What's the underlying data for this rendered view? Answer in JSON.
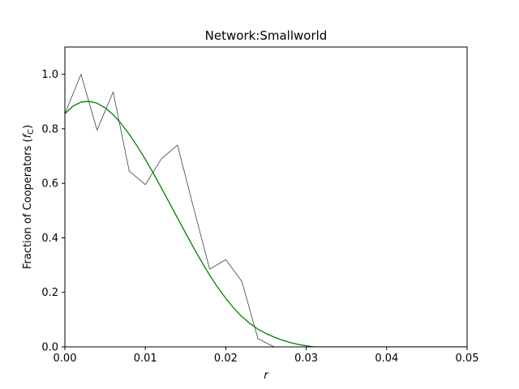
{
  "chart_data": {
    "type": "line",
    "title": "Network:Smallworld",
    "xlabel": "r",
    "ylabel_main": "Fraction of Cooperators (",
    "ylabel_sym": "f",
    "ylabel_sub": "C",
    "ylabel_end": ")",
    "xlim": [
      0.0,
      0.05
    ],
    "ylim": [
      0.0,
      1.1
    ],
    "x_ticks": [
      0.0,
      0.01,
      0.02,
      0.03,
      0.04,
      0.05
    ],
    "x_tick_labels": [
      "0.00",
      "0.01",
      "0.02",
      "0.03",
      "0.04",
      "0.05"
    ],
    "y_ticks": [
      0.0,
      0.2,
      0.4,
      0.6,
      0.8,
      1.0
    ],
    "y_tick_labels": [
      "0.0",
      "0.2",
      "0.4",
      "0.6",
      "0.8",
      "1.0"
    ],
    "grid": false,
    "series": [
      {
        "color": "#404040",
        "x": [
          0.0,
          0.002,
          0.004,
          0.006,
          0.008,
          0.01,
          0.012,
          0.014,
          0.016,
          0.018,
          0.02,
          0.022,
          0.024,
          0.026,
          0.028,
          0.03,
          0.032,
          0.034,
          0.036,
          0.038,
          0.04,
          0.042,
          0.044,
          0.046,
          0.048,
          0.05
        ],
        "y": [
          0.855,
          1.0,
          0.795,
          0.935,
          0.645,
          0.595,
          0.69,
          0.74,
          0.51,
          0.285,
          0.32,
          0.24,
          0.03,
          0.0,
          0.0,
          0.0,
          0.0,
          0.0,
          0.0,
          0.0,
          0.0,
          0.0,
          0.0,
          0.0,
          0.0,
          0.0
        ]
      },
      {
        "color": "#008000",
        "x": [
          0.0,
          0.001,
          0.002,
          0.003,
          0.004,
          0.005,
          0.006,
          0.007,
          0.008,
          0.009,
          0.01,
          0.011,
          0.012,
          0.013,
          0.014,
          0.015,
          0.016,
          0.017,
          0.018,
          0.019,
          0.02,
          0.021,
          0.022,
          0.023,
          0.024,
          0.025,
          0.026,
          0.027,
          0.028,
          0.029,
          0.03,
          0.031,
          0.032,
          0.034,
          0.036,
          0.038,
          0.04,
          0.042,
          0.044,
          0.046,
          0.048,
          0.05
        ],
        "y": [
          0.855,
          0.883,
          0.898,
          0.901,
          0.894,
          0.877,
          0.852,
          0.819,
          0.78,
          0.736,
          0.688,
          0.637,
          0.583,
          0.528,
          0.473,
          0.418,
          0.364,
          0.312,
          0.263,
          0.218,
          0.178,
          0.142,
          0.111,
          0.086,
          0.065,
          0.049,
          0.036,
          0.025,
          0.016,
          0.009,
          0.004,
          0.0,
          0.0,
          0.0,
          0.0,
          0.0,
          0.0,
          0.0,
          0.0,
          0.0,
          0.0,
          0.0
        ]
      }
    ]
  }
}
